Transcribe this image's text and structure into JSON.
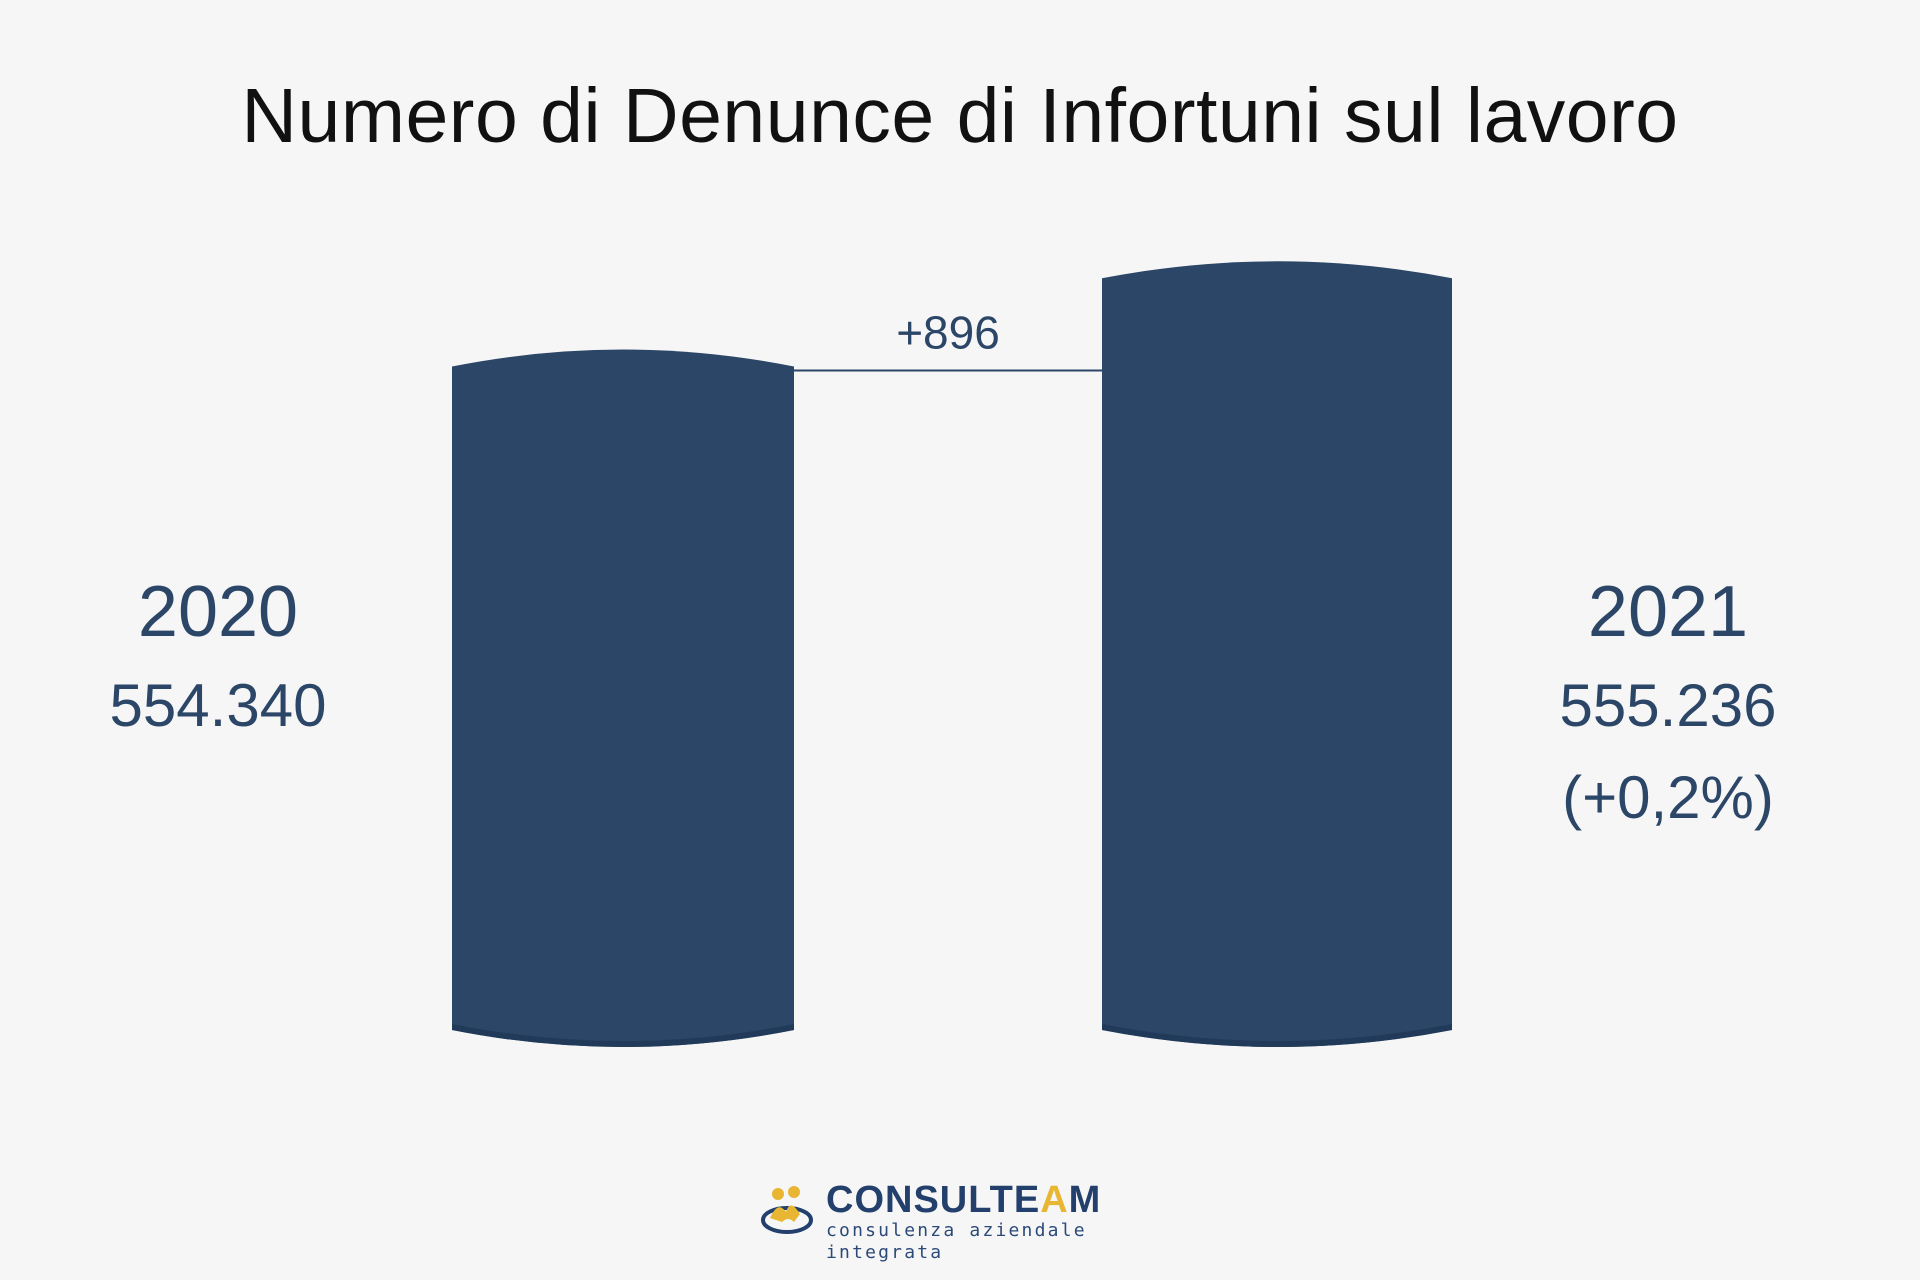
{
  "title": "Numero di Denunce di Infortuni sul lavoro",
  "colors": {
    "bar": "#2c4668",
    "bar_shadow": "#223a5a",
    "text": "#2c4668",
    "connector": "#2c4668",
    "background": "#f6f6f6",
    "logo_blue": "#233f6b",
    "logo_gold": "#e8b632"
  },
  "chart_data": {
    "type": "bar",
    "title": "Numero di Denunce di Infortuni sul lavoro",
    "categories": [
      "2020",
      "2021"
    ],
    "values": [
      554340,
      555236
    ],
    "difference": {
      "label": "+896",
      "value": 896
    },
    "labels": [
      {
        "year": "2020",
        "value": "554.340",
        "change": ""
      },
      {
        "year": "2021",
        "value": "555.236",
        "change": "(+0,2%)"
      }
    ]
  },
  "logo": {
    "name_main": "CONSULTE",
    "name_accent": "A",
    "name_end": "M",
    "tagline": "consulenza aziendale integrata",
    "icon": "people-hands-icon"
  }
}
